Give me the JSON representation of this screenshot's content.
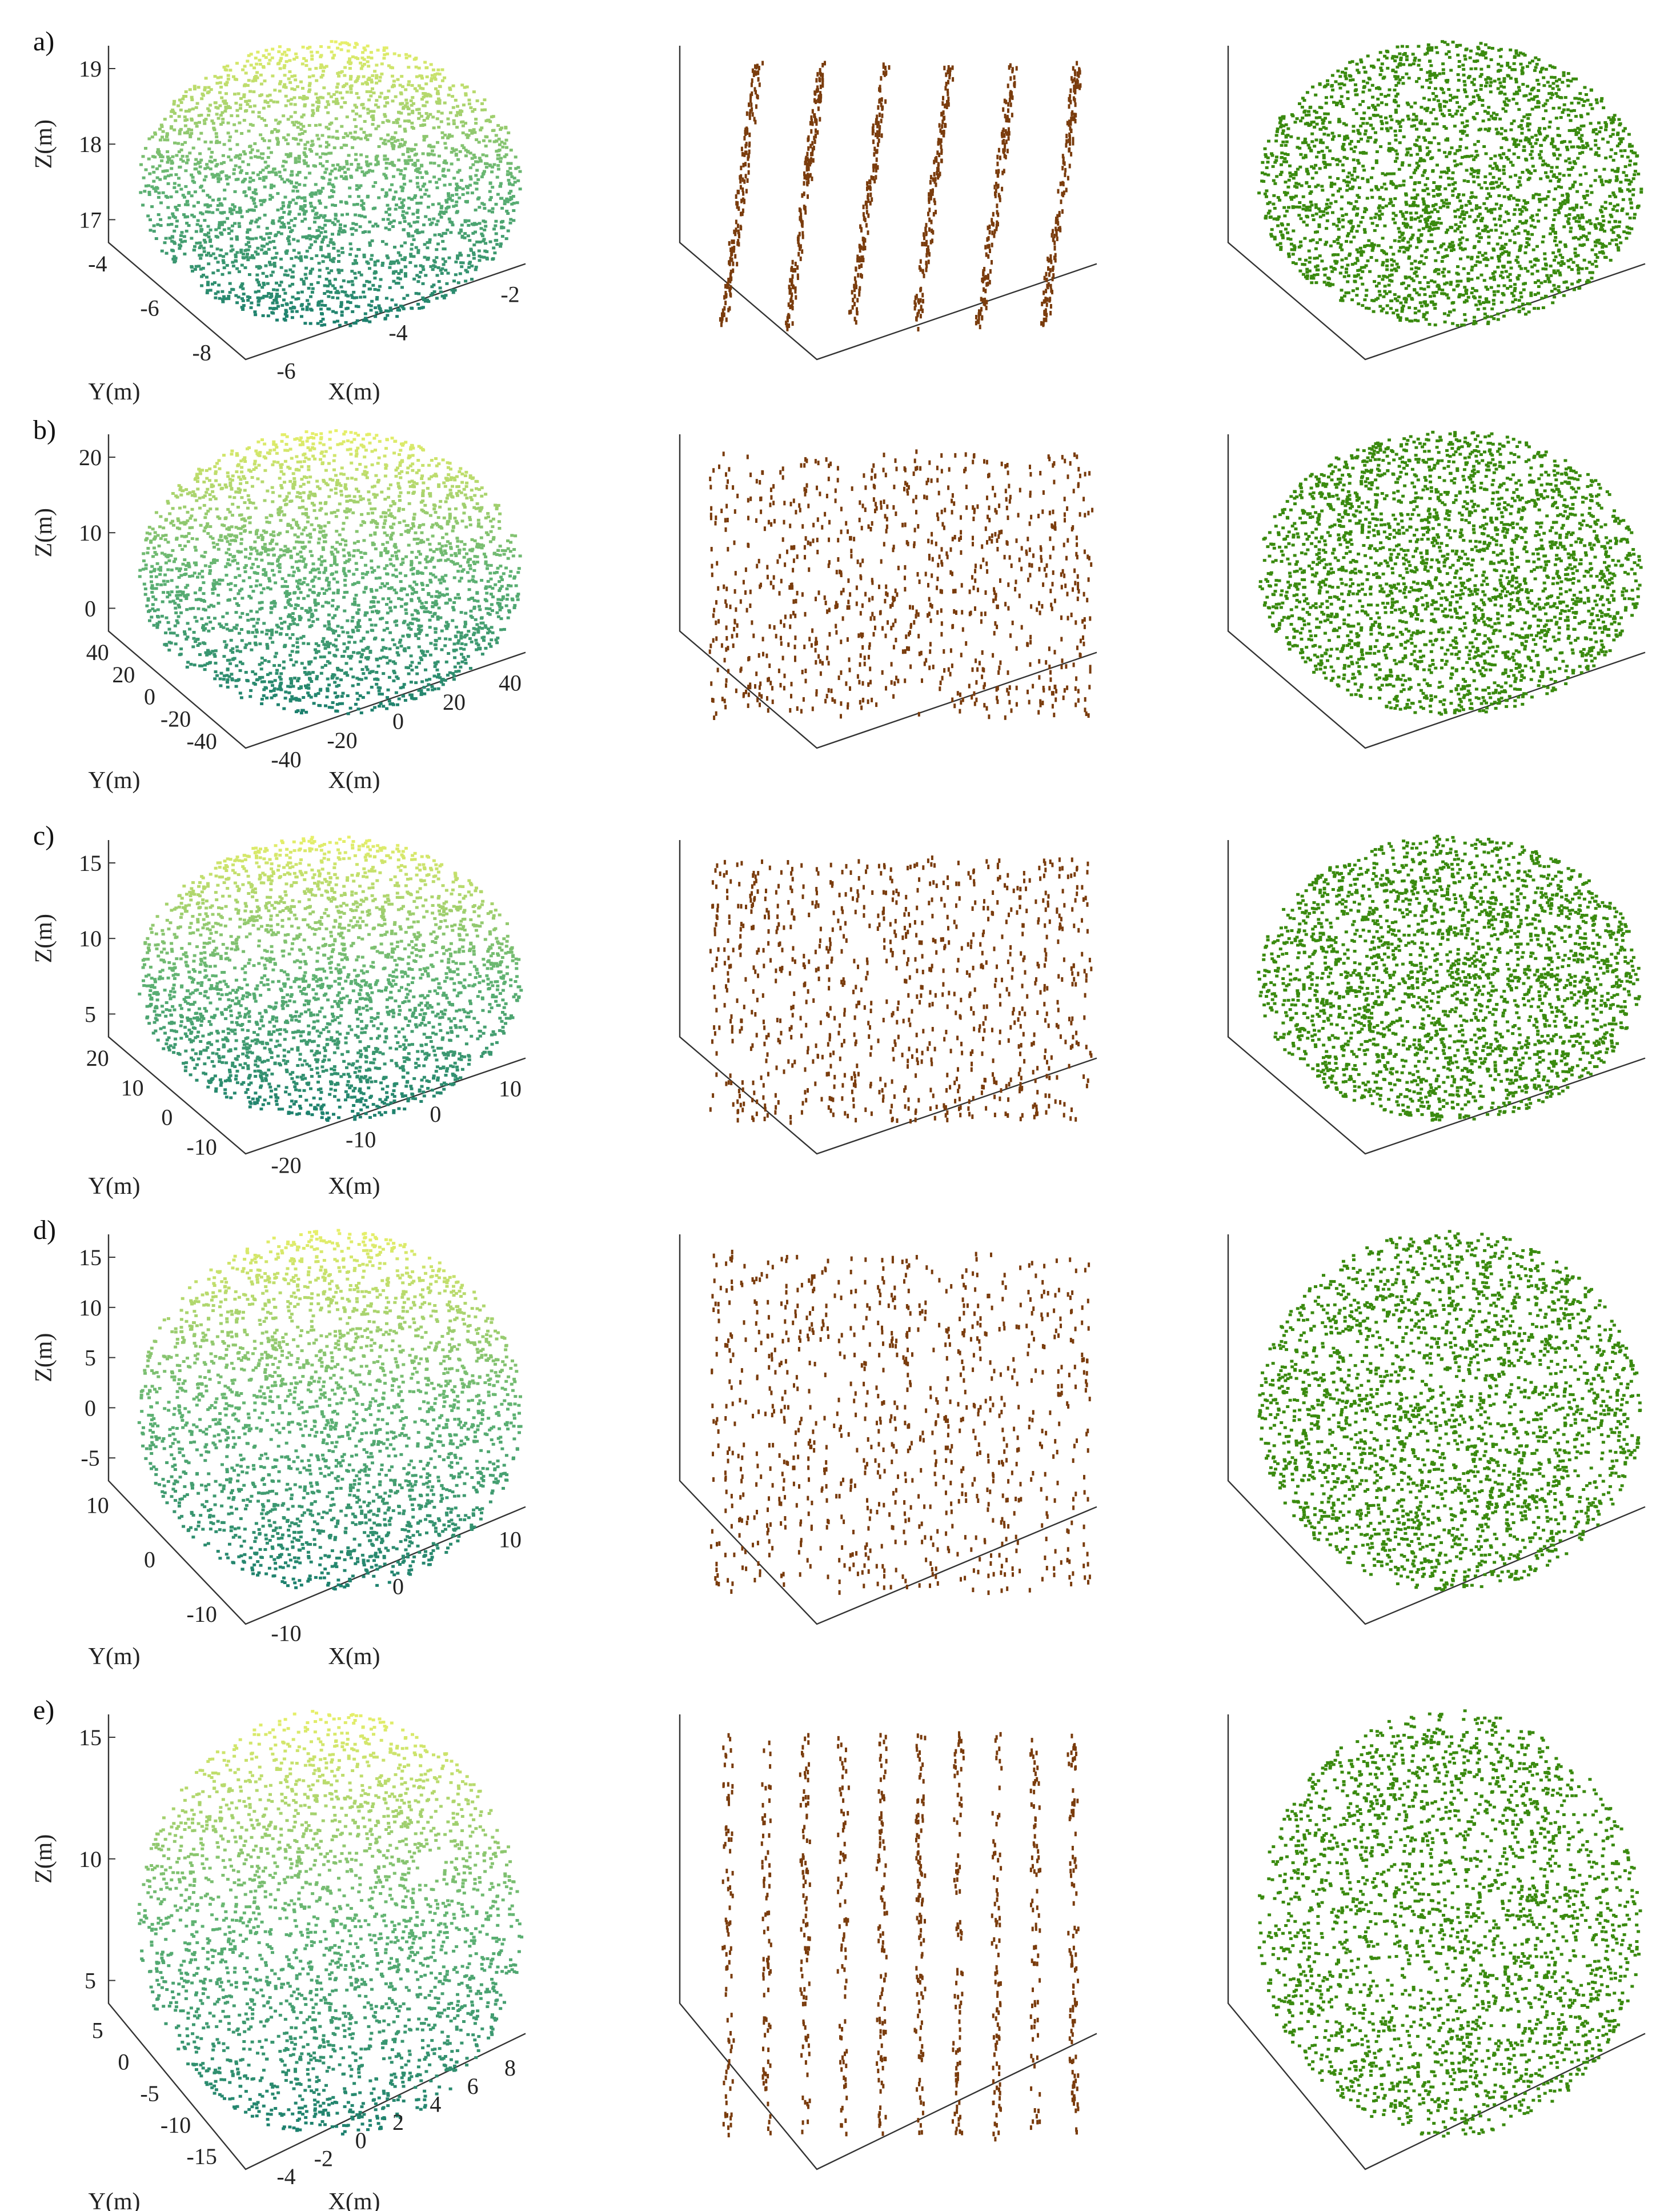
{
  "figure": {
    "rows": [
      {
        "letter": "a)",
        "z_label": "Z(m)",
        "y_label": "Y(m)",
        "x_label": "X(m)",
        "z_ticks": [
          "19",
          "18",
          "17"
        ],
        "y_ticks": [
          "-4",
          "-6",
          "-8"
        ],
        "x_ticks": [
          "-6",
          "-4",
          "-2"
        ]
      },
      {
        "letter": "b)",
        "z_label": "Z(m)",
        "y_label": "Y(m)",
        "x_label": "X(m)",
        "z_ticks": [
          "20",
          "10",
          "0"
        ],
        "y_ticks": [
          "40",
          "20",
          "0",
          "-20",
          "-40"
        ],
        "x_ticks": [
          "-40",
          "-20",
          "0",
          "20",
          "40"
        ]
      },
      {
        "letter": "c)",
        "z_label": "Z(m)",
        "y_label": "Y(m)",
        "x_label": "X(m)",
        "z_ticks": [
          "15",
          "10",
          "5"
        ],
        "y_ticks": [
          "20",
          "10",
          "0",
          "-10"
        ],
        "x_ticks": [
          "-20",
          "-10",
          "0",
          "10"
        ]
      },
      {
        "letter": "d)",
        "z_label": "Z(m)",
        "y_label": "Y(m)",
        "x_label": "X(m)",
        "z_ticks": [
          "15",
          "10",
          "5",
          "0",
          "-5"
        ],
        "y_ticks": [
          "10",
          "0",
          "-10"
        ],
        "x_ticks": [
          "-10",
          "0",
          "10"
        ]
      },
      {
        "letter": "e)",
        "z_label": "Z(m)",
        "y_label": "Y(m)",
        "x_label": "X(m)",
        "z_ticks": [
          "15",
          "10",
          "5"
        ],
        "y_ticks": [
          "5",
          "0",
          "-5",
          "-10",
          "-15"
        ],
        "x_ticks": [
          "-4",
          "-2",
          "0",
          "2",
          "4",
          "6",
          "8"
        ]
      }
    ],
    "colors": {
      "height_low": "#1b7f6e",
      "height_mid": "#5fb272",
      "height_high": "#e8f06a",
      "wood": "#7a3c0d",
      "leaf": "#3a8a0f",
      "axis": "#333333"
    }
  }
}
